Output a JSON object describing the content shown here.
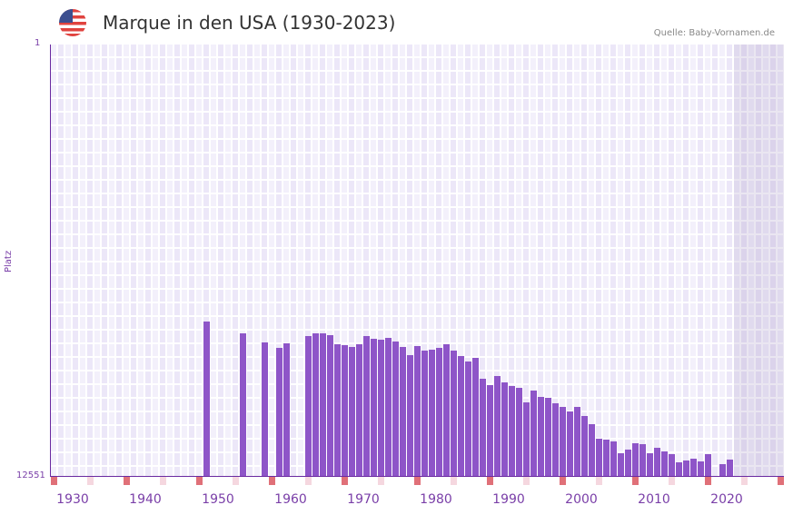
{
  "header": {
    "title": "Marque in den USA (1930-2023)",
    "source": "Quelle: Baby-Vornamen.de",
    "flag_icon": "us-flag-icon"
  },
  "colors": {
    "bar": "#8e55c8",
    "axis": "#6a2aa0",
    "label": "#7a3fa8",
    "marker_red": "#e07078",
    "marker_pink": "#f5d7df",
    "grid_a": "#f3f0fb",
    "grid_b": "#ece7f8"
  },
  "chart_data": {
    "type": "bar",
    "title": "Marque in den USA (1930-2023)",
    "xlabel": "",
    "ylabel": "Platz",
    "ylim": [
      12551,
      1
    ],
    "y_inverted": true,
    "y_ticks": [
      "1",
      "12551"
    ],
    "x_ticks": [
      "1930",
      "1940",
      "1950",
      "1960",
      "1970",
      "1980",
      "1990",
      "2000",
      "2010",
      "2020"
    ],
    "x_range": [
      1929,
      2029
    ],
    "grid": true,
    "legend": null,
    "x": [
      1950,
      1955,
      1958,
      1960,
      1961,
      1964,
      1965,
      1966,
      1967,
      1968,
      1969,
      1970,
      1971,
      1972,
      1973,
      1974,
      1975,
      1976,
      1977,
      1978,
      1979,
      1980,
      1981,
      1982,
      1983,
      1984,
      1985,
      1986,
      1987,
      1988,
      1989,
      1990,
      1991,
      1992,
      1993,
      1994,
      1995,
      1996,
      1997,
      1998,
      1999,
      2000,
      2001,
      2002,
      2003,
      2004,
      2005,
      2006,
      2007,
      2008,
      2009,
      2010,
      2011,
      2012,
      2013,
      2014,
      2015,
      2016,
      2017,
      2018,
      2019,
      2021,
      2022
    ],
    "values": [
      8060,
      8403,
      8667,
      8826,
      8694,
      8482,
      8403,
      8403,
      8456,
      8720,
      8746,
      8799,
      8720,
      8482,
      8562,
      8588,
      8535,
      8641,
      8799,
      9037,
      8773,
      8905,
      8879,
      8826,
      8720,
      8905,
      9063,
      9222,
      9116,
      9724,
      9909,
      9645,
      9830,
      9935,
      9988,
      10411,
      10068,
      10253,
      10279,
      10438,
      10543,
      10675,
      10543,
      10807,
      11045,
      11468,
      11494,
      11547,
      11891,
      11785,
      11600,
      11626,
      11891,
      11732,
      11838,
      11917,
      12155,
      12102,
      12049,
      12128,
      11917,
      12208,
      12075
    ]
  },
  "axis": {
    "ylabel": "Platz",
    "ytick_top": "1",
    "ytick_bottom": "12551",
    "xticks": [
      "1930",
      "1940",
      "1950",
      "1960",
      "1970",
      "1980",
      "1990",
      "2000",
      "2010",
      "2020"
    ]
  }
}
